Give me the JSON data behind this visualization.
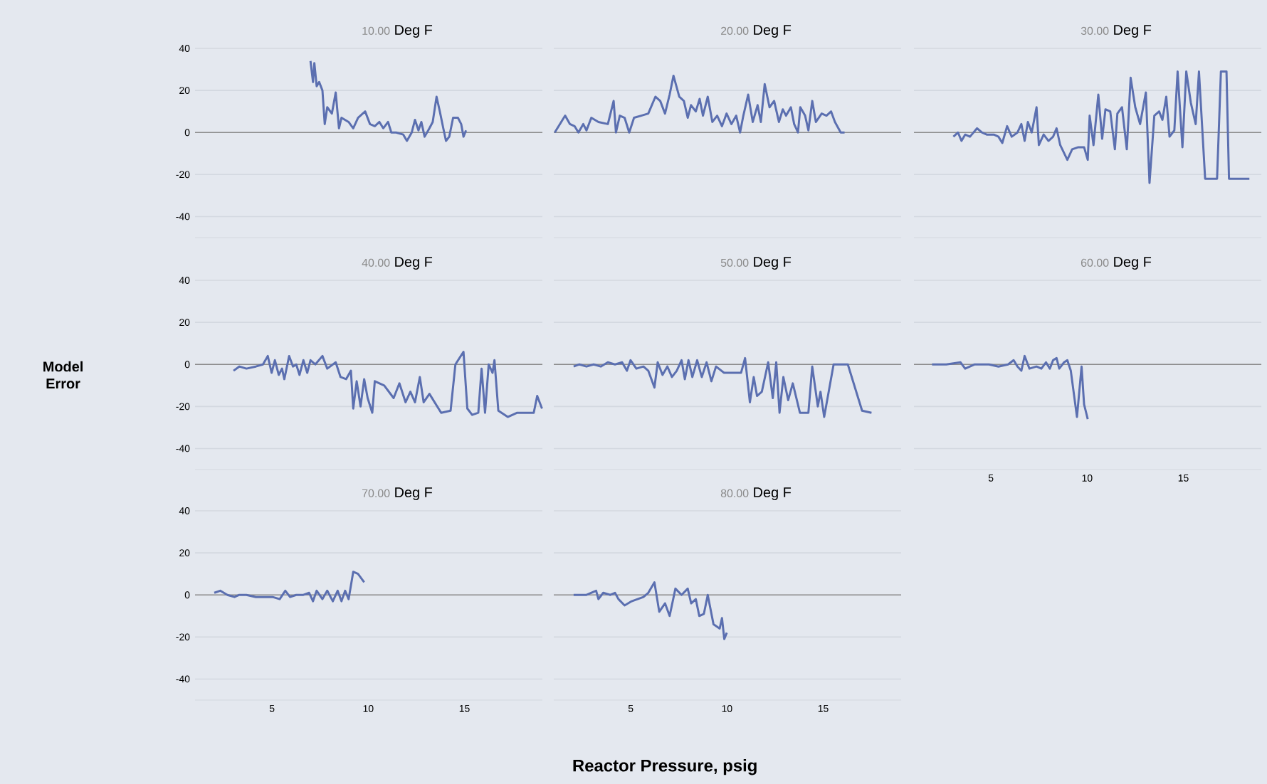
{
  "chart_data": [
    {
      "type": "line",
      "title": "10.00",
      "subtitle": "Deg F",
      "color": "#5b6fb0",
      "xlim": [
        1,
        19.05
      ],
      "ylim": [
        -50,
        40
      ],
      "xticks": [
        5,
        10,
        15
      ],
      "yticks": [
        -40,
        -20,
        0,
        20,
        40
      ],
      "grid": "y",
      "tick_labels": "y",
      "ref_lines": [
        {
          "axis": "y",
          "value": 0,
          "color": "#8c8c8c"
        }
      ],
      "x": [
        7.0,
        7.13,
        7.2,
        7.32,
        7.45,
        7.62,
        7.74,
        7.87,
        8.11,
        8.31,
        8.48,
        8.61,
        8.98,
        9.22,
        9.47,
        9.84,
        10.09,
        10.34,
        10.58,
        10.78,
        11.03,
        11.2,
        11.45,
        11.82,
        12.01,
        12.26,
        12.43,
        12.61,
        12.76,
        12.93,
        13.18,
        13.35,
        13.55,
        13.72,
        13.9,
        14.04,
        14.21,
        14.41,
        14.66,
        14.83,
        14.95,
        15.08
      ],
      "values": [
        34,
        24,
        33,
        22,
        24,
        20,
        4,
        12,
        9,
        19,
        2,
        7,
        5,
        2,
        7,
        10,
        4,
        3,
        5,
        2,
        5,
        0,
        0,
        -1,
        -4,
        0,
        6,
        1,
        5,
        -2,
        2,
        5,
        17,
        10,
        2,
        -4,
        -2,
        7,
        7,
        4,
        -2,
        1
      ]
    },
    {
      "type": "line",
      "title": "20.00",
      "subtitle": "Deg F",
      "color": "#5b6fb0",
      "xlim": [
        1,
        19.05
      ],
      "ylim": [
        -50,
        40
      ],
      "xticks": [
        5,
        10,
        15
      ],
      "yticks": [
        -40,
        -20,
        0,
        20,
        40
      ],
      "grid": "y",
      "tick_labels": false,
      "ref_lines": [
        {
          "axis": "y",
          "value": 0,
          "color": "#8c8c8c"
        }
      ],
      "x": [
        1.05,
        1.59,
        1.84,
        2.08,
        2.28,
        2.53,
        2.7,
        2.95,
        3.32,
        3.81,
        4.11,
        4.23,
        4.43,
        4.68,
        4.92,
        5.17,
        5.54,
        5.91,
        6.28,
        6.53,
        6.78,
        7.02,
        7.22,
        7.52,
        7.76,
        7.96,
        8.13,
        8.38,
        8.58,
        8.75,
        9.0,
        9.24,
        9.49,
        9.74,
        9.98,
        10.23,
        10.48,
        10.68,
        10.85,
        11.1,
        11.34,
        11.59,
        11.76,
        11.96,
        12.21,
        12.45,
        12.7,
        12.9,
        13.07,
        13.32,
        13.49,
        13.69,
        13.81,
        14.06,
        14.23,
        14.43,
        14.62,
        14.92,
        15.17,
        15.41,
        15.61,
        15.91,
        16.11
      ],
      "values": [
        0,
        8,
        4,
        3,
        0,
        4,
        1,
        7,
        5,
        4,
        15,
        0,
        8,
        7,
        0,
        7,
        8,
        9,
        17,
        15,
        9,
        18,
        27,
        17,
        15,
        7,
        13,
        10,
        16,
        8,
        17,
        5,
        8,
        3,
        9,
        4,
        8,
        0,
        8,
        18,
        5,
        13,
        5,
        23,
        12,
        15,
        5,
        11,
        8,
        12,
        4,
        0,
        12,
        8,
        1,
        15,
        5,
        9,
        8,
        10,
        5,
        0,
        0
      ]
    },
    {
      "type": "line",
      "title": "30.00",
      "subtitle": "Deg F",
      "color": "#5b6fb0",
      "xlim": [
        1,
        19.05
      ],
      "ylim": [
        -50,
        40
      ],
      "xticks": [
        5,
        10,
        15
      ],
      "yticks": [
        -40,
        -20,
        0,
        20,
        40
      ],
      "grid": "y",
      "tick_labels": false,
      "ref_lines": [
        {
          "axis": "y",
          "value": 0,
          "color": "#8c8c8c"
        }
      ],
      "x": [
        3.05,
        3.29,
        3.47,
        3.66,
        3.91,
        4.28,
        4.53,
        4.78,
        5.15,
        5.39,
        5.59,
        5.84,
        6.08,
        6.38,
        6.58,
        6.75,
        6.92,
        7.12,
        7.37,
        7.49,
        7.74,
        7.99,
        8.23,
        8.41,
        8.6,
        8.97,
        9.22,
        9.54,
        9.84,
        10.03,
        10.13,
        10.33,
        10.58,
        10.78,
        10.95,
        11.2,
        11.44,
        11.57,
        11.81,
        12.06,
        12.26,
        12.5,
        12.75,
        13.05,
        13.24,
        13.49,
        13.74,
        13.91,
        14.11,
        14.28,
        14.53,
        14.7,
        14.95,
        15.15,
        15.39,
        15.64,
        15.81,
        16.13,
        16.75,
        16.95,
        17.24,
        17.37,
        18.43
      ],
      "values": [
        -2,
        0,
        -4,
        -1,
        -2,
        2,
        0,
        -1,
        -1,
        -2,
        -5,
        3,
        -2,
        0,
        4,
        -4,
        5,
        0,
        12,
        -6,
        -1,
        -4,
        -2,
        2,
        -6,
        -13,
        -8,
        -7,
        -7,
        -13,
        8,
        -6,
        18,
        -3,
        11,
        10,
        -8,
        9,
        12,
        -8,
        26,
        12,
        4,
        19,
        -24,
        8,
        10,
        6,
        17,
        -2,
        1,
        29,
        -7,
        29,
        14,
        4,
        29,
        -22,
        -22,
        29,
        29,
        -22,
        -22
      ]
    },
    {
      "type": "line",
      "title": "40.00",
      "subtitle": "Deg F",
      "ylabel": "Model Error",
      "color": "#5b6fb0",
      "xlim": [
        1,
        19.05
      ],
      "ylim": [
        -50,
        40
      ],
      "xticks": [
        5,
        10,
        15
      ],
      "yticks": [
        -40,
        -20,
        0,
        20,
        40
      ],
      "grid": "y",
      "tick_labels": "y",
      "ref_lines": [
        {
          "axis": "y",
          "value": 0,
          "color": "#8c8c8c"
        }
      ],
      "x": [
        3.0,
        3.3,
        3.67,
        4.16,
        4.53,
        4.78,
        4.98,
        5.15,
        5.35,
        5.52,
        5.64,
        5.89,
        6.09,
        6.26,
        6.43,
        6.63,
        6.83,
        7.0,
        7.25,
        7.62,
        7.87,
        8.31,
        8.56,
        8.85,
        9.1,
        9.22,
        9.4,
        9.6,
        9.79,
        9.97,
        10.21,
        10.34,
        10.83,
        11.32,
        11.62,
        11.94,
        12.19,
        12.43,
        12.68,
        12.88,
        13.18,
        13.79,
        14.28,
        14.53,
        14.95,
        15.15,
        15.4,
        15.72,
        15.89,
        16.07,
        16.26,
        16.46,
        16.56,
        16.76,
        17.25,
        17.74,
        18.6,
        18.78,
        19.03
      ],
      "values": [
        -3,
        -1,
        -2,
        -1,
        0,
        4,
        -4,
        2,
        -5,
        -2,
        -7,
        4,
        -1,
        0,
        -5,
        2,
        -4,
        2,
        0,
        4,
        -2,
        1,
        -6,
        -7,
        -3,
        -21,
        -8,
        -20,
        -7,
        -16,
        -23,
        -8,
        -10,
        -16,
        -9,
        -18,
        -13,
        -18,
        -6,
        -18,
        -14,
        -23,
        -22,
        0,
        6,
        -21,
        -24,
        -23,
        -2,
        -23,
        0,
        -4,
        2,
        -22,
        -25,
        -23,
        -23,
        -15,
        -21
      ]
    },
    {
      "type": "line",
      "title": "50.00",
      "subtitle": "Deg F",
      "color": "#5b6fb0",
      "xlim": [
        1,
        19.05
      ],
      "ylim": [
        -50,
        40
      ],
      "xticks": [
        5,
        10,
        15
      ],
      "yticks": [
        -40,
        -20,
        0,
        20,
        40
      ],
      "grid": "y",
      "tick_labels": false,
      "ref_lines": [
        {
          "axis": "y",
          "value": 0,
          "color": "#8c8c8c"
        }
      ],
      "x": [
        2.03,
        2.33,
        2.7,
        3.07,
        3.44,
        3.81,
        4.18,
        4.55,
        4.8,
        4.99,
        5.29,
        5.66,
        5.91,
        6.23,
        6.4,
        6.65,
        6.9,
        7.14,
        7.39,
        7.64,
        7.81,
        8.0,
        8.2,
        8.45,
        8.69,
        8.94,
        9.19,
        9.43,
        9.85,
        10.73,
        10.94,
        11.19,
        11.39,
        11.56,
        11.81,
        12.14,
        12.38,
        12.56,
        12.73,
        12.93,
        13.18,
        13.42,
        13.79,
        14.23,
        14.43,
        14.72,
        14.86,
        15.05,
        15.54,
        16.28,
        17.02,
        17.51
      ],
      "values": [
        -1,
        0,
        -1,
        0,
        -1,
        1,
        0,
        1,
        -3,
        2,
        -2,
        -1,
        -3,
        -11,
        1,
        -5,
        -1,
        -6,
        -3,
        2,
        -7,
        2,
        -6,
        2,
        -6,
        1,
        -8,
        -1,
        -4,
        -4,
        3,
        -18,
        -6,
        -15,
        -13,
        1,
        -16,
        1,
        -23,
        -6,
        -17,
        -9,
        -23,
        -23,
        -1,
        -20,
        -13,
        -25,
        0,
        0,
        -22,
        -23
      ]
    },
    {
      "type": "line",
      "title": "60.00",
      "subtitle": "Deg F",
      "color": "#5b6fb0",
      "xlim": [
        1,
        19.05
      ],
      "ylim": [
        -50,
        40
      ],
      "xticks": [
        5,
        10,
        15
      ],
      "yticks": [
        -40,
        -20,
        0,
        20,
        40
      ],
      "grid": "y",
      "tick_labels": "x",
      "ref_lines": [
        {
          "axis": "y",
          "value": 0,
          "color": "#8c8c8c"
        }
      ],
      "x": [
        1.94,
        2.68,
        3.42,
        3.66,
        4.16,
        4.9,
        5.39,
        5.89,
        6.18,
        6.38,
        6.58,
        6.75,
        7.0,
        7.37,
        7.62,
        7.86,
        8.06,
        8.23,
        8.41,
        8.55,
        8.8,
        8.97,
        9.15,
        9.47,
        9.71,
        9.84,
        10.03
      ],
      "values": [
        0,
        0,
        1,
        -2,
        0,
        0,
        -1,
        0,
        2,
        -1,
        -3,
        4,
        -2,
        -1,
        -2,
        1,
        -2,
        2,
        3,
        -2,
        1,
        2,
        -3,
        -25,
        -1,
        -19,
        -26
      ]
    },
    {
      "type": "line",
      "title": "70.00",
      "subtitle": "Deg F",
      "color": "#5b6fb0",
      "xlim": [
        1,
        19.05
      ],
      "ylim": [
        -50,
        40
      ],
      "xticks": [
        5,
        10,
        15
      ],
      "yticks": [
        -40,
        -20,
        0,
        20,
        40
      ],
      "grid": "y",
      "ref_lines": [
        {
          "axis": "y",
          "value": 0,
          "color": "#8c8c8c"
        }
      ],
      "x": [
        2.0,
        2.31,
        2.68,
        3.05,
        3.3,
        3.67,
        4.16,
        4.66,
        5.03,
        5.4,
        5.69,
        5.94,
        6.26,
        6.63,
        6.93,
        7.13,
        7.32,
        7.62,
        7.87,
        8.16,
        8.41,
        8.61,
        8.8,
        8.98,
        9.22,
        9.47,
        9.79
      ],
      "values": [
        1,
        2,
        0,
        -1,
        0,
        0,
        -1,
        -1,
        -1,
        -2,
        2,
        -1,
        0,
        0,
        1,
        -3,
        2,
        -2,
        2,
        -3,
        2,
        -3,
        2,
        -2,
        11,
        10,
        6
      ]
    },
    {
      "type": "line",
      "title": "80.00",
      "subtitle": "Deg F",
      "xlabel": "Reactor Pressure, psig",
      "color": "#5b6fb0",
      "xlim": [
        1,
        19.05
      ],
      "ylim": [
        -50,
        40
      ],
      "xticks": [
        5,
        10,
        15
      ],
      "yticks": [
        -40,
        -20,
        0,
        20,
        40
      ],
      "grid": "y",
      "tick_labels": "x",
      "ref_lines": [
        {
          "axis": "y",
          "value": 0,
          "color": "#8c8c8c"
        }
      ],
      "x": [
        2.03,
        2.7,
        3.2,
        3.32,
        3.57,
        3.94,
        4.18,
        4.36,
        4.68,
        5.05,
        5.66,
        5.91,
        6.23,
        6.48,
        6.78,
        7.02,
        7.32,
        7.64,
        7.96,
        8.14,
        8.38,
        8.56,
        8.8,
        9.0,
        9.3,
        9.62,
        9.74,
        9.86,
        9.99
      ],
      "values": [
        0,
        0,
        2,
        -2,
        1,
        0,
        1,
        -2,
        -5,
        -3,
        -1,
        1,
        6,
        -8,
        -4,
        -10,
        3,
        0,
        3,
        -4,
        -2,
        -10,
        -9,
        0,
        -14,
        -16,
        -11,
        -21,
        -18
      ]
    }
  ]
}
